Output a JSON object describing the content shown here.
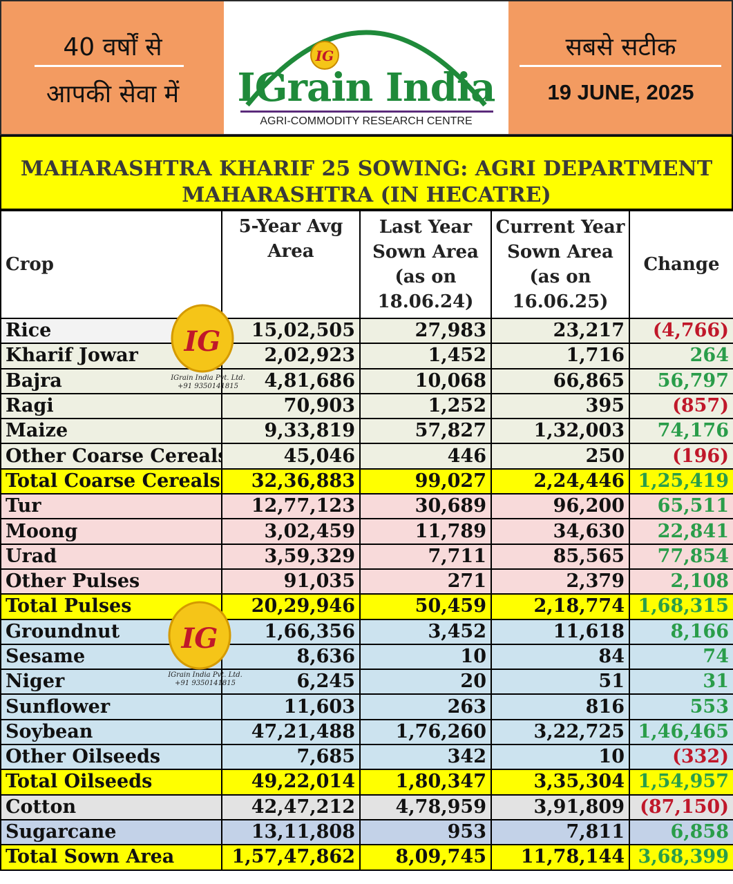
{
  "header": {
    "left_line1": "40 वर्षों से",
    "left_line2": "आपकी सेवा में",
    "brand": "IGrain India",
    "logo_letters": "IG",
    "tagline": "AGRI-COMMODITY RESEARCH CENTRE",
    "right_line1": "सबसे सटीक",
    "date": "19 JUNE, 2025"
  },
  "title": {
    "line1": "MAHARASHTRA KHARIF 25 SOWING: AGRI DEPARTMENT",
    "line2": "MAHARASHTRA (IN HECATRE)"
  },
  "table": {
    "headers": {
      "crop": "Crop",
      "avg_l1": "5-Year Avg",
      "avg_l2": "Area",
      "last_l1": "Last Year",
      "last_l2": "Sown Area",
      "last_l3": "(as on",
      "last_l4": "18.06.24)",
      "cur_l1": "Current Year",
      "cur_l2": "Sown Area",
      "cur_l3": "(as on",
      "cur_l4": "16.06.25)",
      "change": "Change"
    },
    "rows": [
      {
        "crop": "Rice",
        "avg": "15,02,505",
        "last": "27,983",
        "current": "23,217",
        "change": "(4,766)"
      },
      {
        "crop": "Kharif Jowar",
        "avg": "2,02,923",
        "last": "1,452",
        "current": "1,716",
        "change": "264"
      },
      {
        "crop": "Bajra",
        "avg": "4,81,686",
        "last": "10,068",
        "current": "66,865",
        "change": "56,797"
      },
      {
        "crop": "Ragi",
        "avg": "70,903",
        "last": "1,252",
        "current": "395",
        "change": "(857)"
      },
      {
        "crop": "Maize",
        "avg": "9,33,819",
        "last": "57,827",
        "current": "1,32,003",
        "change": "74,176"
      },
      {
        "crop": "Other Coarse Cereals",
        "avg": "45,046",
        "last": "446",
        "current": "250",
        "change": "(196)"
      },
      {
        "crop": "Total Coarse Cereals",
        "avg": "32,36,883",
        "last": "99,027",
        "current": "2,24,446",
        "change": "1,25,419"
      },
      {
        "crop": "Tur",
        "avg": "12,77,123",
        "last": "30,689",
        "current": "96,200",
        "change": "65,511"
      },
      {
        "crop": "Moong",
        "avg": "3,02,459",
        "last": "11,789",
        "current": "34,630",
        "change": "22,841"
      },
      {
        "crop": "Urad",
        "avg": "3,59,329",
        "last": "7,711",
        "current": "85,565",
        "change": "77,854"
      },
      {
        "crop": "Other Pulses",
        "avg": "91,035",
        "last": "271",
        "current": "2,379",
        "change": "2,108"
      },
      {
        "crop": "Total Pulses",
        "avg": "20,29,946",
        "last": "50,459",
        "current": "2,18,774",
        "change": "1,68,315"
      },
      {
        "crop": "Groundnut",
        "avg": "1,66,356",
        "last": "3,452",
        "current": "11,618",
        "change": "8,166"
      },
      {
        "crop": "Sesame",
        "avg": "8,636",
        "last": "10",
        "current": "84",
        "change": "74"
      },
      {
        "crop": "Niger",
        "avg": "6,245",
        "last": "20",
        "current": "51",
        "change": "31"
      },
      {
        "crop": "Sunflower",
        "avg": "11,603",
        "last": "263",
        "current": "816",
        "change": "553"
      },
      {
        "crop": "Soybean",
        "avg": "47,21,488",
        "last": "1,76,260",
        "current": "3,22,725",
        "change": "1,46,465"
      },
      {
        "crop": "Other Oilseeds",
        "avg": "7,685",
        "last": "342",
        "current": "10",
        "change": "(332)"
      },
      {
        "crop": "Total Oilseeds",
        "avg": "49,22,014",
        "last": "1,80,347",
        "current": "3,35,304",
        "change": "1,54,957"
      },
      {
        "crop": "Cotton",
        "avg": "42,47,212",
        "last": "4,78,959",
        "current": "3,91,809",
        "change": "(87,150)"
      },
      {
        "crop": "Sugarcane",
        "avg": "13,11,808",
        "last": "953",
        "current": "7,811",
        "change": "6,858"
      },
      {
        "crop": "Total Sown Area",
        "avg": "1,57,47,862",
        "last": "8,09,745",
        "current": "11,78,144",
        "change": "3,68,399"
      }
    ]
  },
  "watermark": {
    "letters": "IG",
    "company": "IGrain India Pvt. Ltd.",
    "phone": "+91 9350141815"
  },
  "colors": {
    "header_bg": "#f39b61",
    "title_bg": "#ffff00",
    "cereal_row": "#eef0e2",
    "pulse_row": "#f8dada",
    "oilseed_row": "#cce3ef",
    "negative": "#c0182a",
    "positive": "#2a9d4a"
  }
}
